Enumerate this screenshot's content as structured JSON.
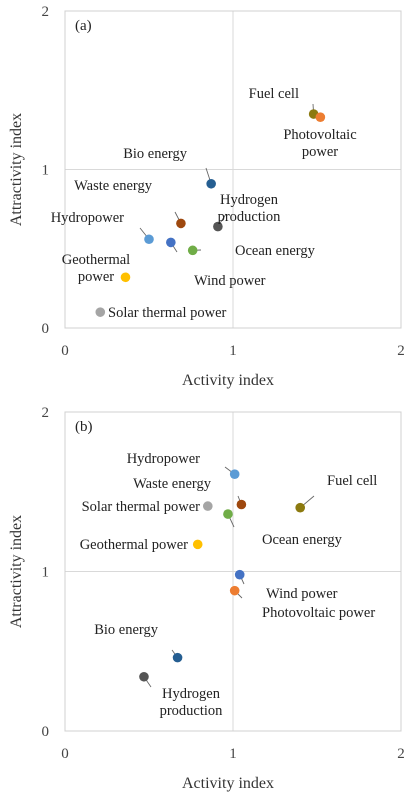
{
  "chart_data": [
    {
      "type": "scatter",
      "panel_label": "(a)",
      "xlabel": "Activity index",
      "ylabel": "Attractivity index",
      "xlim": [
        0,
        2
      ],
      "ylim": [
        0,
        2
      ],
      "xticks": [
        "0",
        "1",
        "2"
      ],
      "yticks": [
        "0",
        "1",
        "2"
      ],
      "grid": "reference lines at x=1 and y=1",
      "points": [
        {
          "label": [
            "Fuel cell"
          ],
          "x": 1.48,
          "y": 1.35,
          "color": "#8c7a0f"
        },
        {
          "label": [
            "Photovoltaic",
            "power"
          ],
          "x": 1.52,
          "y": 1.33,
          "color": "#ed7d31"
        },
        {
          "label": [
            "Bio energy"
          ],
          "x": 0.87,
          "y": 0.91,
          "color": "#255e91"
        },
        {
          "label": [
            "Waste energy"
          ],
          "x": 0.69,
          "y": 0.66,
          "color": "#9e480e"
        },
        {
          "label": [
            "Hydrogen",
            "production"
          ],
          "x": 0.91,
          "y": 0.64,
          "color": "#555555"
        },
        {
          "label": [
            "Hydropower"
          ],
          "x": 0.5,
          "y": 0.56,
          "color": "#5b9bd5"
        },
        {
          "label": [
            "Wind power"
          ],
          "x": 0.63,
          "y": 0.54,
          "color": "#4472c4"
        },
        {
          "label": [
            "Ocean energy"
          ],
          "x": 0.76,
          "y": 0.49,
          "color": "#70ad47"
        },
        {
          "label": [
            "Geothermal",
            "power"
          ],
          "x": 0.36,
          "y": 0.32,
          "color": "#ffc000"
        },
        {
          "label": [
            "Solar thermal power"
          ],
          "x": 0.21,
          "y": 0.1,
          "color": "#a5a5a5"
        }
      ]
    },
    {
      "type": "scatter",
      "panel_label": "(b)",
      "xlabel": "Activity index",
      "ylabel": "Attractivity index",
      "xlim": [
        0,
        2
      ],
      "ylim": [
        0,
        2
      ],
      "xticks": [
        "0",
        "1",
        "2"
      ],
      "yticks": [
        "0",
        "1",
        "2"
      ],
      "grid": "reference lines at x=1 and y=1",
      "points": [
        {
          "label": [
            "Hydropower"
          ],
          "x": 1.01,
          "y": 1.61,
          "color": "#5b9bd5"
        },
        {
          "label": [
            "Fuel cell"
          ],
          "x": 1.4,
          "y": 1.4,
          "color": "#8c7a0f"
        },
        {
          "label": [
            "Waste energy"
          ],
          "x": 1.05,
          "y": 1.42,
          "color": "#9e480e"
        },
        {
          "label": [
            "Solar thermal power"
          ],
          "x": 0.85,
          "y": 1.41,
          "color": "#a5a5a5"
        },
        {
          "label": [
            "Ocean energy"
          ],
          "x": 0.97,
          "y": 1.36,
          "color": "#70ad47"
        },
        {
          "label": [
            "Geothermal power"
          ],
          "x": 0.79,
          "y": 1.17,
          "color": "#ffc000"
        },
        {
          "label": [
            "Wind power"
          ],
          "x": 1.04,
          "y": 0.98,
          "color": "#4472c4"
        },
        {
          "label": [
            "Photovoltaic power"
          ],
          "x": 1.01,
          "y": 0.88,
          "color": "#ed7d31"
        },
        {
          "label": [
            "Bio energy"
          ],
          "x": 0.67,
          "y": 0.46,
          "color": "#255e91"
        },
        {
          "label": [
            "Hydrogen",
            "production"
          ],
          "x": 0.47,
          "y": 0.34,
          "color": "#555555"
        }
      ]
    }
  ]
}
